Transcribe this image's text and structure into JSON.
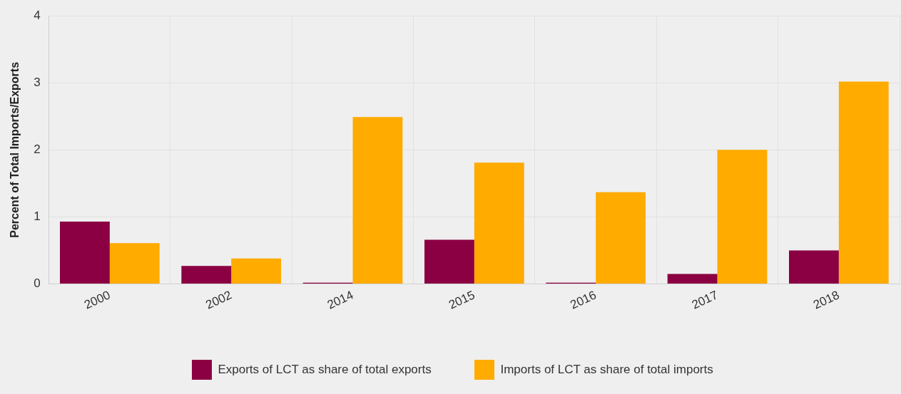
{
  "chart_data": {
    "type": "bar",
    "ylabel": "Percent of Total Imports/Exports",
    "categories": [
      "2000",
      "2002",
      "2014",
      "2015",
      "2016",
      "2017",
      "2018"
    ],
    "series": [
      {
        "name": "Exports of LCT as share of total exports",
        "color": "#8b0042",
        "values": [
          0.93,
          0.27,
          0.02,
          0.66,
          0.02,
          0.15,
          0.5
        ]
      },
      {
        "name": "Imports of LCT as share of total imports",
        "color": "#ffab00",
        "values": [
          0.61,
          0.38,
          2.49,
          1.81,
          1.37,
          2.0,
          3.02
        ]
      }
    ],
    "ylim": [
      0,
      4
    ],
    "yticks": [
      0,
      1,
      2,
      3,
      4
    ],
    "grid": true,
    "legend": "bottom"
  }
}
